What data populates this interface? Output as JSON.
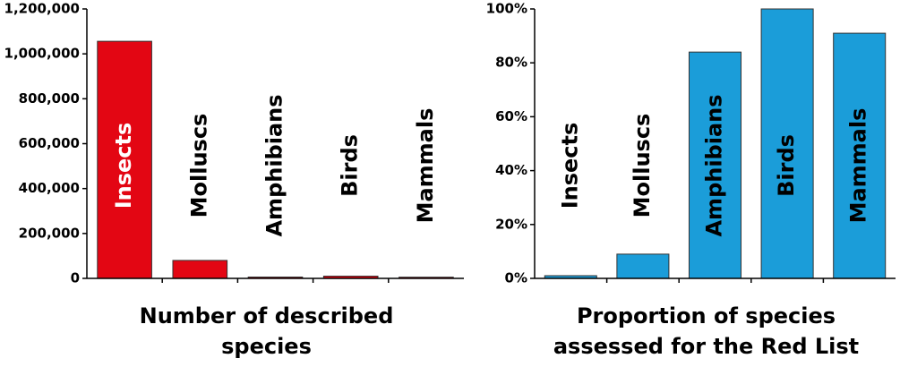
{
  "chart_data": [
    {
      "type": "bar",
      "title": [
        "Number of described",
        "species"
      ],
      "categories": [
        "Insects",
        "Molluscs",
        "Amphibians",
        "Birds",
        "Mammals"
      ],
      "values": [
        1056000,
        80000,
        6000,
        10000,
        5500
      ],
      "color": "#e30613",
      "inside_label_color": "#ffffff",
      "ylim": [
        0,
        1200000
      ],
      "yticks": [
        {
          "value": 0,
          "label": "0"
        },
        {
          "value": 200000,
          "label": "200,000"
        },
        {
          "value": 400000,
          "label": "400,000"
        },
        {
          "value": 600000,
          "label": "600,000"
        },
        {
          "value": 800000,
          "label": "800,000"
        },
        {
          "value": 1000000,
          "label": "1,000,000"
        },
        {
          "value": 1200000,
          "label": "1,200,000"
        }
      ]
    },
    {
      "type": "bar",
      "title": [
        "Proportion of species",
        "assessed for the Red List"
      ],
      "categories": [
        "Insects",
        "Molluscs",
        "Amphibians",
        "Birds",
        "Mammals"
      ],
      "values": [
        1,
        9,
        84,
        100,
        91
      ],
      "color": "#1b9dd9",
      "inside_label_color": "#000000",
      "ylim": [
        0,
        100
      ],
      "yticks": [
        {
          "value": 0,
          "label": "0%"
        },
        {
          "value": 20,
          "label": "20%"
        },
        {
          "value": 40,
          "label": "40%"
        },
        {
          "value": 60,
          "label": "60%"
        },
        {
          "value": 80,
          "label": "80%"
        },
        {
          "value": 100,
          "label": "100%"
        }
      ]
    }
  ]
}
